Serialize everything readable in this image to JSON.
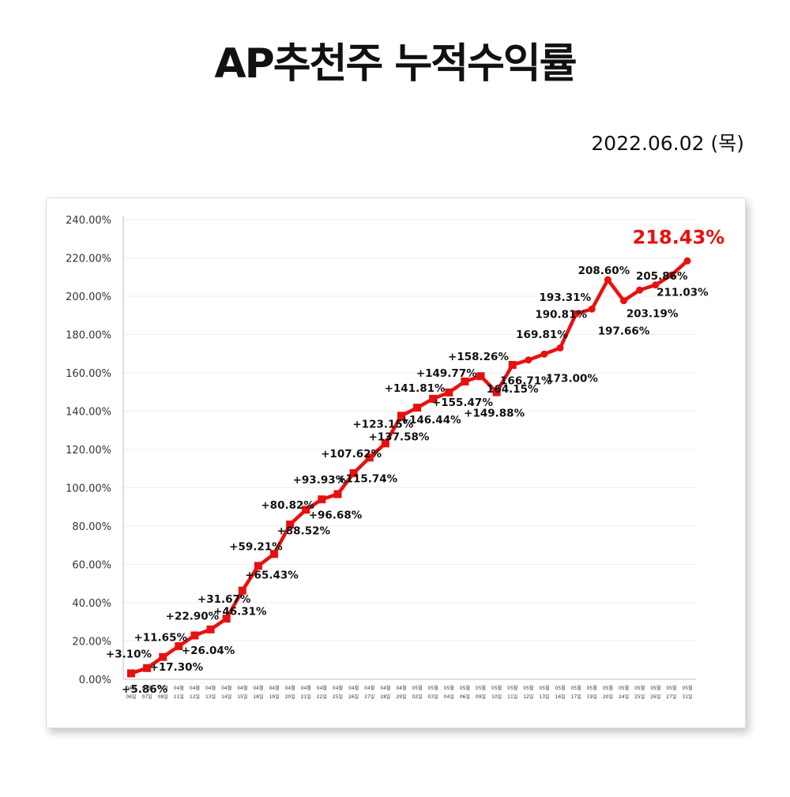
{
  "title": "AP추천주 누적수익률",
  "date": "2022.06.02 (목)",
  "colors": {
    "line": "#e8100f",
    "highlight": "#e8100f",
    "text": "#111111",
    "grid": "#eeeeee"
  },
  "chart_data": {
    "type": "line",
    "series": [
      {
        "values": [
          3.1,
          5.86,
          11.65,
          17.3,
          22.9,
          26.04,
          31.67,
          46.31,
          59.21,
          65.43,
          80.82,
          88.52,
          93.93,
          96.68,
          107.62,
          115.74,
          123.15,
          137.58,
          141.81,
          146.44,
          149.77,
          155.47,
          158.26,
          149.88,
          164.15,
          166.71,
          169.81,
          173.0,
          190.81,
          193.31,
          208.6,
          197.66,
          203.19,
          205.86,
          211.03,
          218.43
        ],
        "labels": [
          "+3.10%",
          "+5.86%",
          "+11.65%",
          "+17.30%",
          "+22.90%",
          "+26.04%",
          "+31.67%",
          "+46.31%",
          "+59.21%",
          "+65.43%",
          "+80.82%",
          "+88.52%",
          "+93.93%",
          "+96.68%",
          "+107.62%",
          "+115.74%",
          "+123.15%",
          "+137.58%",
          "+141.81%",
          "+146.44%",
          "+149.77%",
          "+155.47%",
          "+158.26%",
          "+149.88%",
          "164.15%",
          "166.71%",
          "169.81%",
          "173.00%",
          "190.81%",
          "193.31%",
          "208.60%",
          "197.66%",
          "203.19%",
          "205.86%",
          "211.03%",
          "218.43%"
        ]
      }
    ],
    "x_month": [
      "04월",
      "04월",
      "04월",
      "04월",
      "04월",
      "04월",
      "04월",
      "04월",
      "04월",
      "04월",
      "04월",
      "04월",
      "04월",
      "04월",
      "04월",
      "04월",
      "04월",
      "04월",
      "05월",
      "05월",
      "05월",
      "05월",
      "05월",
      "05월",
      "05월",
      "05월",
      "05월",
      "05월",
      "05월",
      "05월",
      "05월",
      "05월",
      "05월",
      "05월",
      "05월",
      "05월"
    ],
    "x_day": [
      "06일",
      "07일",
      "08일",
      "11일",
      "12일",
      "13일",
      "14일",
      "15일",
      "18일",
      "19일",
      "20일",
      "21일",
      "22일",
      "25일",
      "26일",
      "27일",
      "28일",
      "29일",
      "02일",
      "03일",
      "04일",
      "06일",
      "09일",
      "10일",
      "11일",
      "12일",
      "13일",
      "16일",
      "17일",
      "19일",
      "20일",
      "24일",
      "25일",
      "26일",
      "27일",
      "31일"
    ],
    "y_ticks": [
      "0.00%",
      "20.00%",
      "40.00%",
      "60.00%",
      "80.00%",
      "100.00%",
      "120.00%",
      "140.00%",
      "160.00%",
      "180.00%",
      "200.00%",
      "220.00%",
      "240.00%"
    ],
    "ylim": [
      0,
      240
    ],
    "grid": true
  }
}
